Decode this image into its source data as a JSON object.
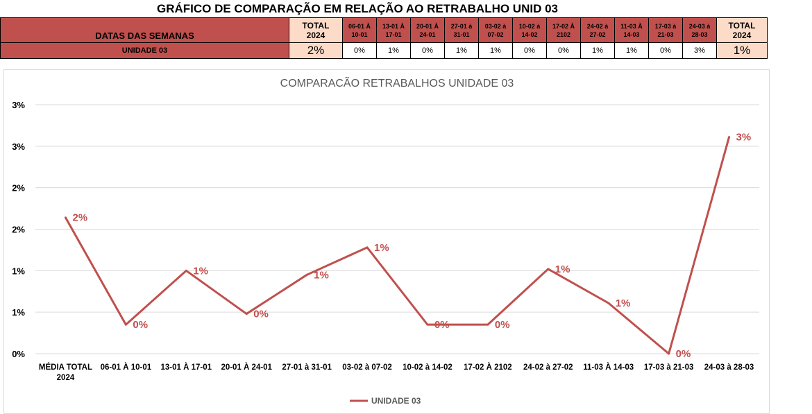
{
  "page_title": "GRÁFICO DE COMPARAÇÃO EM RELAÇÃO AO RETRABALHO UNID 03",
  "table": {
    "header_label": "DATAS DAS SEMANAS",
    "row_label": "UNIDADE 03",
    "total_left_header": "TOTAL\n2024",
    "total_left_value": "2%",
    "weeks": [
      {
        "header": "06-01 À\n10-01",
        "value": "0%"
      },
      {
        "header": "13-01 À\n17-01",
        "value": "1%"
      },
      {
        "header": "20-01 À\n24-01",
        "value": "0%"
      },
      {
        "header": "27-01 à\n31-01",
        "value": "1%"
      },
      {
        "header": "03-02 à\n07-02",
        "value": "1%"
      },
      {
        "header": "10-02 à\n14-02",
        "value": "0%"
      },
      {
        "header": "17-02 À\n2102",
        "value": "0%"
      },
      {
        "header": "24-02 à\n27-02",
        "value": "1%"
      },
      {
        "header": "11-03 À\n14-03",
        "value": "1%"
      },
      {
        "header": "17-03 à\n21-03",
        "value": "0%"
      },
      {
        "header": "24-03 à\n28-03",
        "value": "3%"
      }
    ],
    "total_right_header": "TOTAL\n2024",
    "total_right_value": "1%"
  },
  "chart_data": {
    "type": "line",
    "title": "COMPARACÃO RETRABALHOS UNIDADE 03",
    "categories": [
      "MÉDIA TOTAL\n2024",
      "06-01 À 10-01",
      "13-01 À 17-01",
      "20-01 À 24-01",
      "27-01 à 31-01",
      "03-02 à 07-02",
      "10-02 à 14-02",
      "17-02 À 2102",
      "24-02 à 27-02",
      "11-03 À 14-03",
      "17-03 à 21-03",
      "24-03 à 28-03"
    ],
    "series": [
      {
        "name": "UNIDADE 03",
        "color": "#c0504d",
        "values": [
          0.0164,
          0.0035,
          0.01,
          0.0048,
          0.0095,
          0.0128,
          0.0035,
          0.0035,
          0.0102,
          0.0061,
          0.0,
          0.0261
        ],
        "labels": [
          "2%",
          "0%",
          "1%",
          "0%",
          "1%",
          "1%",
          "0%",
          "0%",
          "1%",
          "1%",
          "0%",
          "3%"
        ]
      }
    ],
    "ylim": [
      0,
      0.03
    ],
    "y_ticks": [
      {
        "value": 0.0,
        "label": "0%"
      },
      {
        "value": 0.005,
        "label": "1%"
      },
      {
        "value": 0.01,
        "label": "1%"
      },
      {
        "value": 0.015,
        "label": "2%"
      },
      {
        "value": 0.02,
        "label": "2%"
      },
      {
        "value": 0.025,
        "label": "3%"
      },
      {
        "value": 0.03,
        "label": "3%"
      }
    ],
    "grid": true,
    "legend_position": "bottom"
  }
}
